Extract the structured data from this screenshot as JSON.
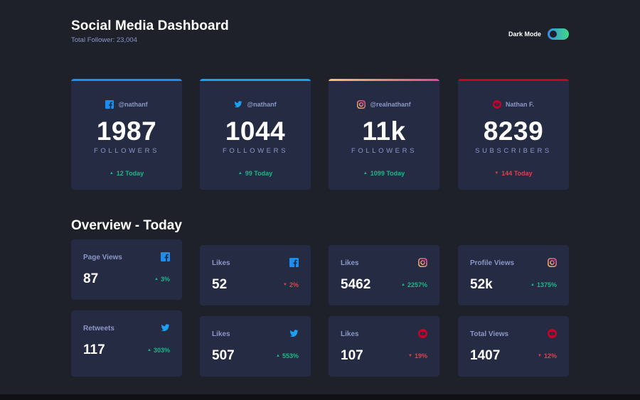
{
  "header": {
    "title": "Social Media Dashboard",
    "subtitle": "Total Follower: 23,004",
    "toggle_label": "Dark Mode"
  },
  "colors": {
    "facebook": "#198ff5",
    "twitter": "#1ca0f2",
    "instagram_gradient": [
      "#fdc468",
      "#df4996"
    ],
    "youtube": "#c4032a",
    "up": "#1db489",
    "down": "#dc414c"
  },
  "cards": [
    {
      "network": "facebook",
      "icon": "facebook-icon",
      "handle": "@nathanf",
      "value": "1987",
      "unit": "FOLLOWERS",
      "change": "12 Today",
      "direction": "up"
    },
    {
      "network": "twitter",
      "icon": "twitter-icon",
      "handle": "@nathanf",
      "value": "1044",
      "unit": "FOLLOWERS",
      "change": "99 Today",
      "direction": "up"
    },
    {
      "network": "instagram",
      "icon": "instagram-icon",
      "handle": "@realnathanf",
      "value": "11k",
      "unit": "FOLLOWERS",
      "change": "1099 Today",
      "direction": "up"
    },
    {
      "network": "youtube",
      "icon": "youtube-icon",
      "handle": "Nathan F.",
      "value": "8239",
      "unit": "SUBSCRIBERS",
      "change": "144 Today",
      "direction": "down"
    }
  ],
  "overview": {
    "title": "Overview - Today",
    "items": [
      {
        "label": "Page Views",
        "network": "facebook",
        "value": "87",
        "change": "3%",
        "direction": "up"
      },
      {
        "label": "Retweets",
        "network": "twitter",
        "value": "117",
        "change": "303%",
        "direction": "up"
      },
      {
        "label": "Likes",
        "network": "facebook",
        "value": "52",
        "change": "2%",
        "direction": "down"
      },
      {
        "label": "Likes",
        "network": "twitter",
        "value": "507",
        "change": "553%",
        "direction": "up"
      },
      {
        "label": "Likes",
        "network": "instagram",
        "value": "5462",
        "change": "2257%",
        "direction": "up"
      },
      {
        "label": "Likes",
        "network": "youtube",
        "value": "107",
        "change": "19%",
        "direction": "down"
      },
      {
        "label": "Profile Views",
        "network": "instagram",
        "value": "52k",
        "change": "1375%",
        "direction": "up"
      },
      {
        "label": "Total Views",
        "network": "youtube",
        "value": "1407",
        "change": "12%",
        "direction": "down"
      }
    ]
  }
}
